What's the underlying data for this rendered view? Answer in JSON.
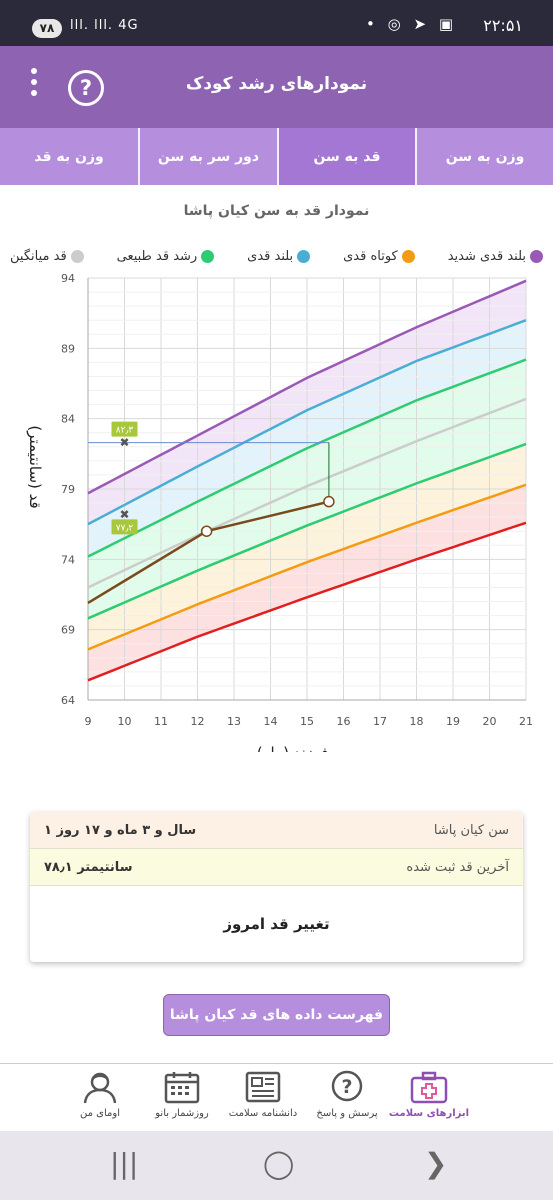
{
  "status_bar": {
    "battery": "۷۸",
    "time": "۲۲:۵۱",
    "signal": "lll. lll. 4G",
    "icons": "• ◎ ➤ ▣"
  },
  "header": {
    "title": "نمودارهای رشد کودک",
    "help_symbol": "?"
  },
  "tabs": [
    {
      "label": "وزن به سن",
      "active": false
    },
    {
      "label": "قد به سن",
      "active": true
    },
    {
      "label": "دور سر به سن",
      "active": false
    },
    {
      "label": "وزن به قد",
      "active": false
    }
  ],
  "chart_title": "نمودار قد به سن کیان پاشا",
  "legend": [
    {
      "label": "بلند قدی شدید",
      "color": "#9b59b6"
    },
    {
      "label": "کوتاه قدی",
      "color": "#f39c12"
    },
    {
      "label": "بلند قدی",
      "color": "#4aaed4"
    },
    {
      "label": "رشد قد طبیعی",
      "color": "#2ecc71"
    },
    {
      "label": "قد میانگین",
      "color": "#cccccc"
    }
  ],
  "chart_data": {
    "type": "line",
    "xlabel": "سن فرزند (ماه)",
    "ylabel": "قد (سانتیمتر)",
    "xlim": [
      9,
      21
    ],
    "ylim": [
      64,
      94
    ],
    "x_ticks": [
      "9",
      "10",
      "11",
      "12",
      "13",
      "14",
      "15",
      "16",
      "17",
      "18",
      "19",
      "20",
      "21"
    ],
    "y_ticks": [
      "64",
      "69",
      "74",
      "79",
      "84",
      "89",
      "94"
    ],
    "grid": true,
    "reference_curves": [
      {
        "color": "#9b59b6",
        "x": [
          9,
          12,
          15,
          18,
          21
        ],
        "y": [
          78.7,
          82.8,
          86.9,
          90.5,
          93.8
        ]
      },
      {
        "color": "#4aaed4",
        "x": [
          9,
          12,
          15,
          18,
          21
        ],
        "y": [
          76.5,
          80.6,
          84.6,
          88.1,
          91.0
        ]
      },
      {
        "color": "#2ecc71",
        "x": [
          9,
          12,
          15,
          18,
          21
        ],
        "y": [
          74.2,
          78.1,
          81.9,
          85.3,
          88.2
        ]
      },
      {
        "color": "#cccccc",
        "x": [
          9,
          12,
          15,
          18,
          21
        ],
        "y": [
          72.0,
          75.7,
          79.2,
          82.4,
          85.4
        ]
      },
      {
        "color": "#2ecc71",
        "x": [
          9,
          12,
          15,
          18,
          21
        ],
        "y": [
          69.8,
          73.2,
          76.4,
          79.4,
          82.2
        ]
      },
      {
        "color": "#f39c12",
        "x": [
          9,
          12,
          15,
          18,
          21
        ],
        "y": [
          67.6,
          70.8,
          73.8,
          76.6,
          79.3
        ]
      },
      {
        "color": "#e02020",
        "x": [
          9,
          12,
          15,
          18,
          21
        ],
        "y": [
          65.4,
          68.5,
          71.3,
          74.0,
          76.6
        ]
      }
    ],
    "child_series": {
      "color": "#7a4a1e",
      "x": [
        9,
        12.25,
        15.6
      ],
      "y": [
        70.9,
        76.0,
        78.1
      ],
      "markers": [
        12.25,
        15.6
      ]
    },
    "crosshair": {
      "x": 15.6,
      "y": 82.3
    },
    "annotations": [
      {
        "x": 10,
        "y": 82.3,
        "label": "۸۲٫۳"
      },
      {
        "x": 10,
        "y": 77.2,
        "label": "۷۷٫۲"
      }
    ]
  },
  "info": {
    "age_label": "سن کیان پاشا",
    "age_value": "۱ سال و ۳ ماه و ۱۷ روز",
    "height_label": "آخرین قد ثبت شده",
    "height_value": "۷۸٫۱ سانتیمتر",
    "change_label": "تغییر قد امروز"
  },
  "list_button": "فهرست داده های قد کیان پاشا",
  "bottom_nav": [
    {
      "label": "ابزارهای سلامت",
      "icon": "medical-kit-icon",
      "active": true
    },
    {
      "label": "پرسش و پاسخ",
      "icon": "question-icon",
      "active": false
    },
    {
      "label": "دانشنامه سلامت",
      "icon": "newspaper-icon",
      "active": false
    },
    {
      "label": "روزشمار بانو",
      "icon": "calendar-icon",
      "active": false
    },
    {
      "label": "اومای من",
      "icon": "user-icon",
      "active": false
    }
  ],
  "system_nav": {
    "recents": "|||",
    "home": "◯",
    "back": "❯"
  }
}
